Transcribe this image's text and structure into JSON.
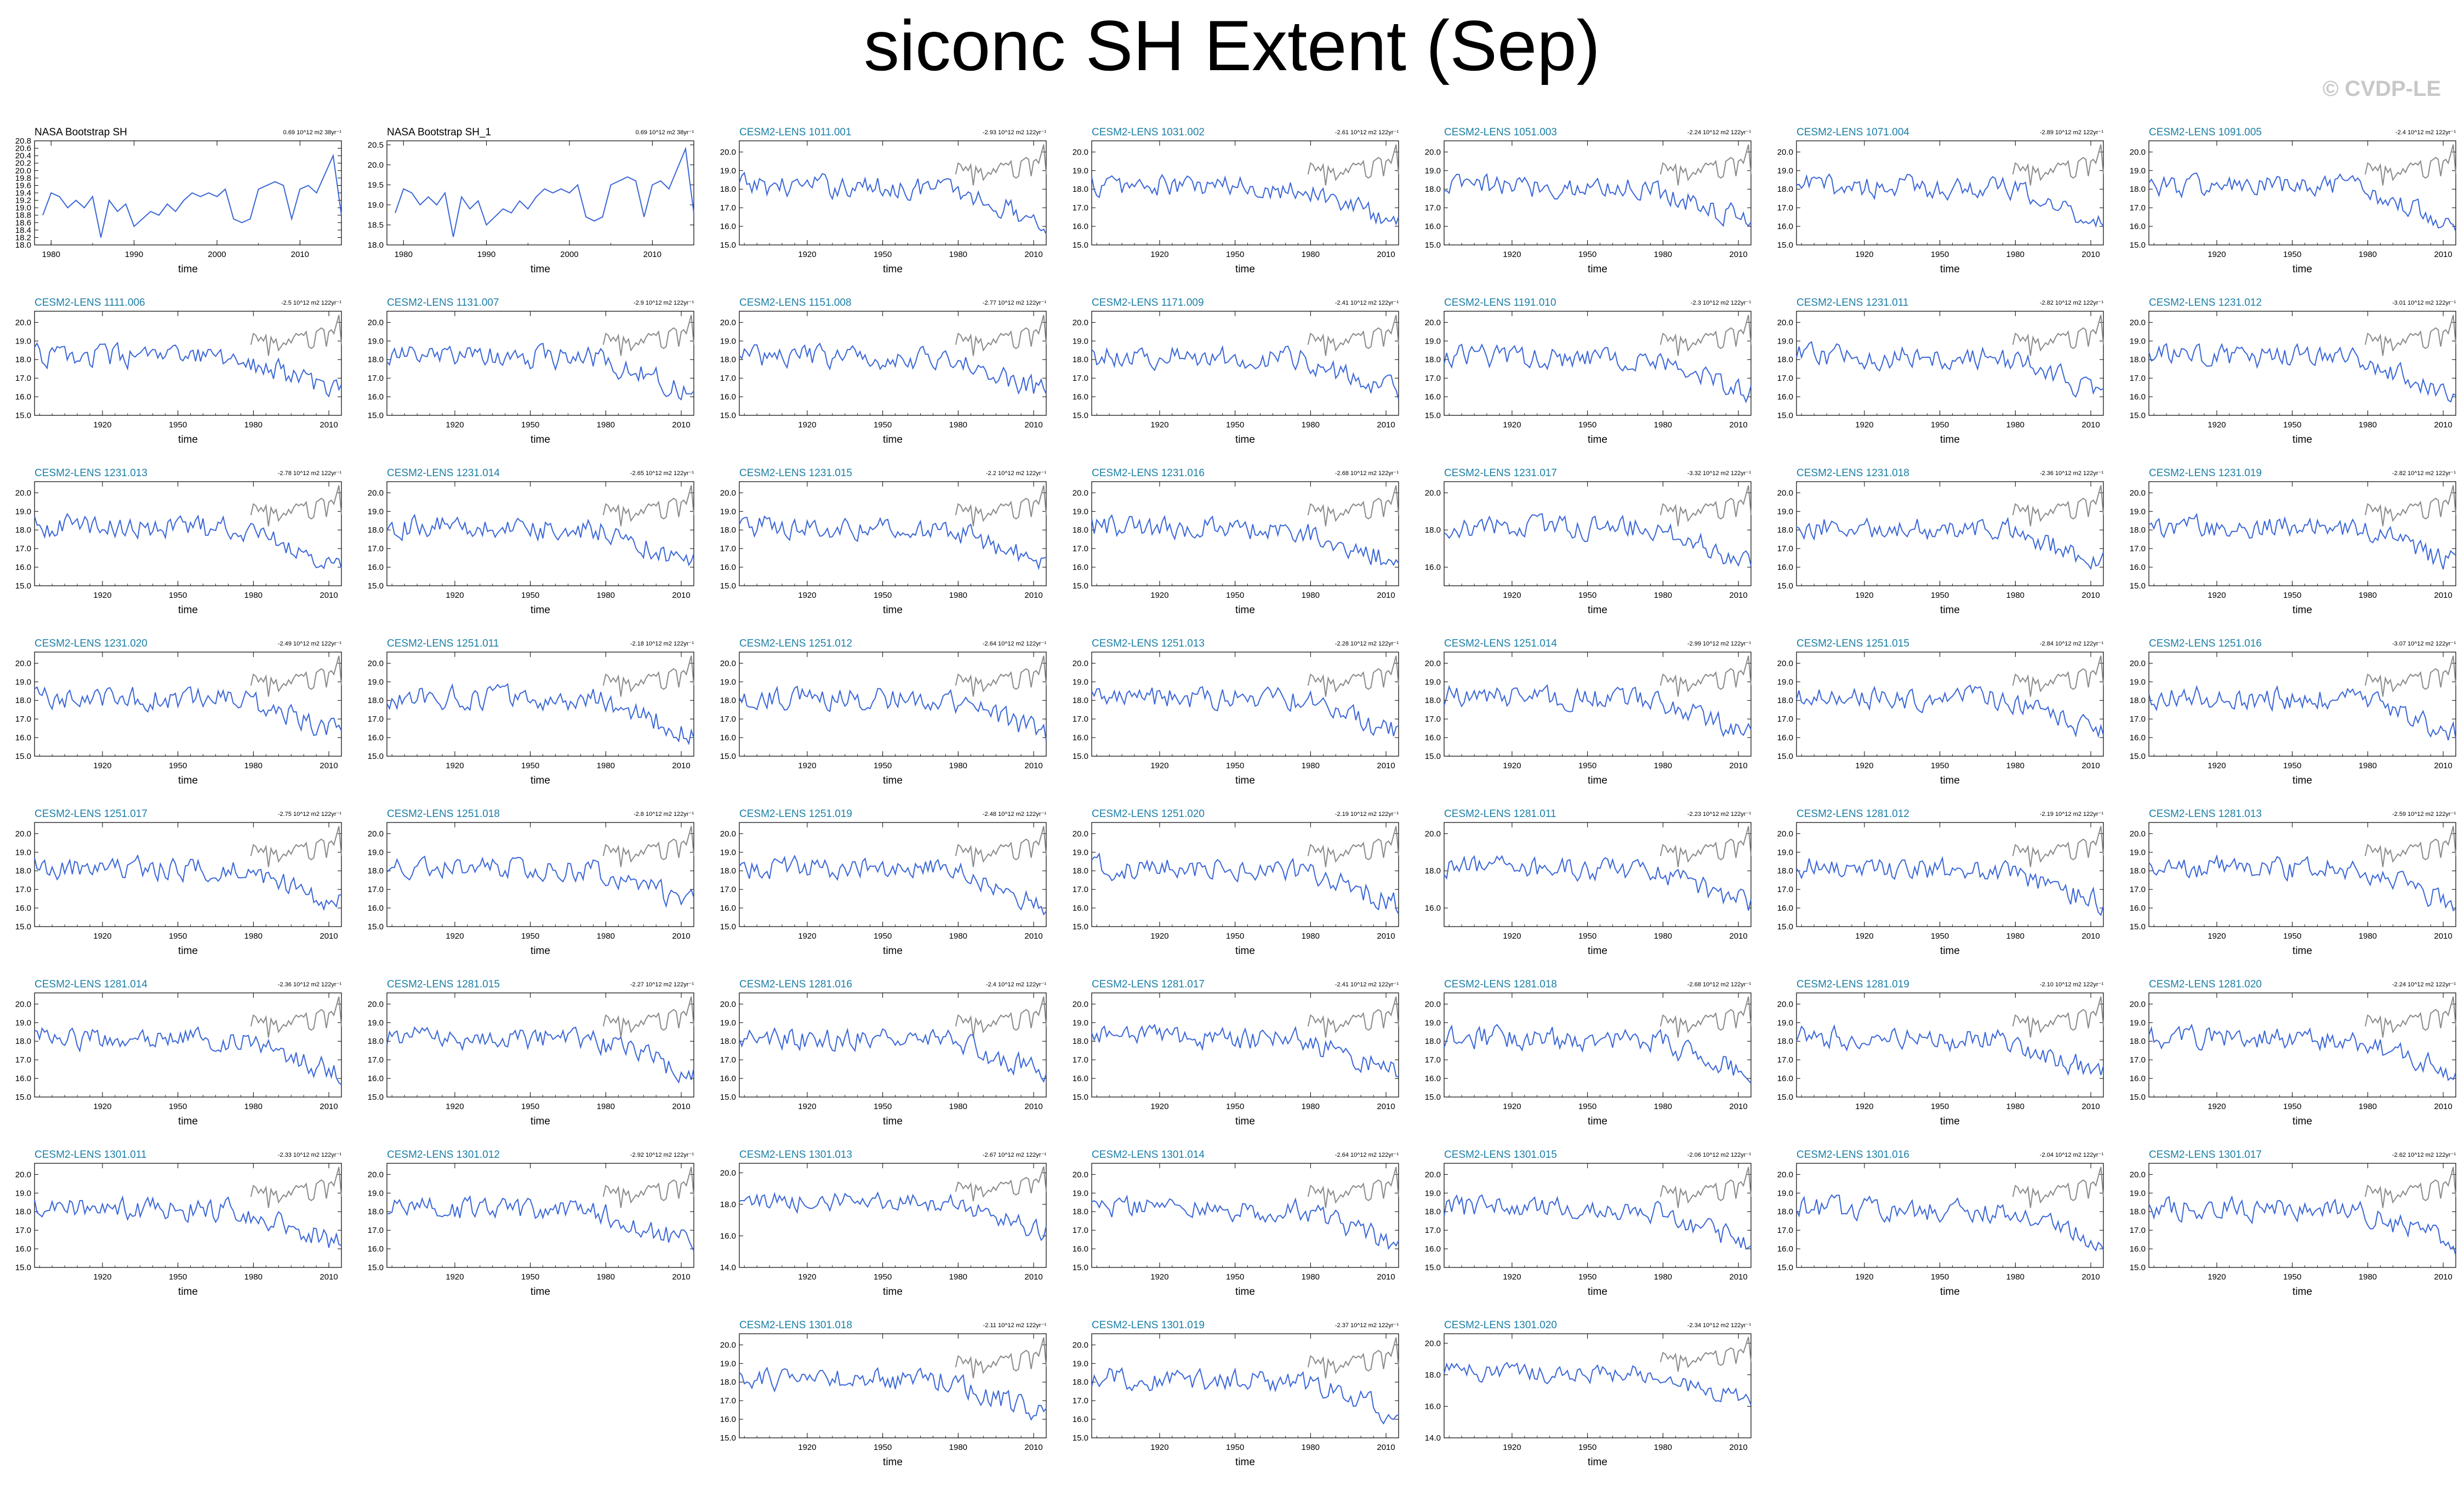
{
  "title": "siconc SH Extent (Sep)",
  "watermark": "© CVDP-LE",
  "colors": {
    "model_line": "#3a66d8",
    "obs_overlay": "#8a8a8a",
    "obs_line": "#3a66d8",
    "title_model": "#1b7fa6",
    "title_obs": "#000000"
  },
  "chart_data": [
    {
      "type": "line",
      "title": "NASA Bootstrap SH",
      "trend": "0.69 10^12 m2 38yr⁻¹",
      "xlabel": "time",
      "xlim": [
        1978,
        2015
      ],
      "xticks": [
        1980,
        1990,
        2000,
        2010
      ],
      "ylim": [
        18.0,
        20.8
      ],
      "yticks": [
        "18.0",
        "18.2",
        "18.4",
        "18.6",
        "18.8",
        "19.0",
        "19.2",
        "19.4",
        "19.6",
        "19.8",
        "20.0",
        "20.2",
        "20.4",
        "20.6",
        "20.8"
      ],
      "obs": true,
      "series": [
        {
          "x": [
            1979,
            1980,
            1981,
            1982,
            1983,
            1984,
            1985,
            1986,
            1987,
            1988,
            1989,
            1990,
            1991,
            1992,
            1993,
            1994,
            1995,
            1996,
            1997,
            1998,
            1999,
            2000,
            2001,
            2002,
            2003,
            2004,
            2005,
            2006,
            2007,
            2008,
            2009,
            2010,
            2011,
            2012,
            2013,
            2014,
            2015
          ],
          "values": [
            18.8,
            19.4,
            19.3,
            19.0,
            19.2,
            19.0,
            19.3,
            18.2,
            19.2,
            18.9,
            19.1,
            18.5,
            18.7,
            18.9,
            18.8,
            19.1,
            18.9,
            19.2,
            19.4,
            19.3,
            19.4,
            19.3,
            19.5,
            18.7,
            18.6,
            18.7,
            19.5,
            19.6,
            19.7,
            19.6,
            18.7,
            19.5,
            19.6,
            19.4,
            19.9,
            20.4,
            18.8
          ]
        }
      ]
    },
    {
      "type": "line",
      "title": "NASA Bootstrap SH_1",
      "trend": "0.69 10^12 m2 38yr⁻¹",
      "xlabel": "time",
      "xlim": [
        1978,
        2015
      ],
      "xticks": [
        1980,
        1990,
        2000,
        2010
      ],
      "ylim": [
        18.0,
        20.6
      ],
      "yticks": [
        "18.0",
        "18.5",
        "19.0",
        "19.5",
        "20.0",
        "20.5"
      ],
      "obs": true,
      "series": [
        {
          "x": [
            1979,
            1980,
            1981,
            1982,
            1983,
            1984,
            1985,
            1986,
            1987,
            1988,
            1989,
            1990,
            1991,
            1992,
            1993,
            1994,
            1995,
            1996,
            1997,
            1998,
            1999,
            2000,
            2001,
            2002,
            2003,
            2004,
            2005,
            2006,
            2007,
            2008,
            2009,
            2010,
            2011,
            2012,
            2013,
            2014,
            2015
          ],
          "values": [
            18.8,
            19.4,
            19.3,
            19.0,
            19.2,
            19.0,
            19.3,
            18.2,
            19.2,
            18.9,
            19.1,
            18.5,
            18.7,
            18.9,
            18.8,
            19.1,
            18.9,
            19.2,
            19.4,
            19.3,
            19.4,
            19.3,
            19.5,
            18.7,
            18.6,
            18.7,
            19.5,
            19.6,
            19.7,
            19.6,
            18.7,
            19.5,
            19.6,
            19.4,
            19.9,
            20.4,
            18.8
          ]
        }
      ]
    },
    {
      "title": "CESM2-LENS 1011.001",
      "trend": "-2.93 10^12 m2 122yr⁻¹"
    },
    {
      "title": "CESM2-LENS 1031.002",
      "trend": "-2.61 10^12 m2 122yr⁻¹"
    },
    {
      "title": "CESM2-LENS 1051.003",
      "trend": "-2.24 10^12 m2 122yr⁻¹"
    },
    {
      "title": "CESM2-LENS 1071.004",
      "trend": "-2.89 10^12 m2 122yr⁻¹"
    },
    {
      "title": "CESM2-LENS 1091.005",
      "trend": "-2.4 10^12 m2 122yr⁻¹"
    },
    {
      "title": "CESM2-LENS 1111.006",
      "trend": "-2.5 10^12 m2 122yr⁻¹"
    },
    {
      "title": "CESM2-LENS 1131.007",
      "trend": "-2.9 10^12 m2 122yr⁻¹"
    },
    {
      "title": "CESM2-LENS 1151.008",
      "trend": "-2.77 10^12 m2 122yr⁻¹"
    },
    {
      "title": "CESM2-LENS 1171.009",
      "trend": "-2.41 10^12 m2 122yr⁻¹"
    },
    {
      "title": "CESM2-LENS 1191.010",
      "trend": "-2.3 10^12 m2 122yr⁻¹"
    },
    {
      "title": "CESM2-LENS 1231.011",
      "trend": "-2.82 10^12 m2 122yr⁻¹"
    },
    {
      "title": "CESM2-LENS 1231.012",
      "trend": "-3.01 10^12 m2 122yr⁻¹"
    },
    {
      "title": "CESM2-LENS 1231.013",
      "trend": "-2.78 10^12 m2 122yr⁻¹"
    },
    {
      "title": "CESM2-LENS 1231.014",
      "trend": "-2.65 10^12 m2 122yr⁻¹"
    },
    {
      "title": "CESM2-LENS 1231.015",
      "trend": "-2.2 10^12 m2 122yr⁻¹"
    },
    {
      "title": "CESM2-LENS 1231.016",
      "trend": "-2.68 10^12 m2 122yr⁻¹"
    },
    {
      "title": "CESM2-LENS 1231.017",
      "trend": "-3.32 10^12 m2 122yr⁻¹",
      "yticks": [
        "16.0",
        "18.0",
        "20.0"
      ]
    },
    {
      "title": "CESM2-LENS 1231.018",
      "trend": "-2.36 10^12 m2 122yr⁻¹"
    },
    {
      "title": "CESM2-LENS 1231.019",
      "trend": "-2.82 10^12 m2 122yr⁻¹"
    },
    {
      "title": "CESM2-LENS 1231.020",
      "trend": "-2.49 10^12 m2 122yr⁻¹"
    },
    {
      "title": "CESM2-LENS 1251.011",
      "trend": "-2.18 10^12 m2 122yr⁻¹"
    },
    {
      "title": "CESM2-LENS 1251.012",
      "trend": "-2.64 10^12 m2 122yr⁻¹"
    },
    {
      "title": "CESM2-LENS 1251.013",
      "trend": "-2.28 10^12 m2 122yr⁻¹"
    },
    {
      "title": "CESM2-LENS 1251.014",
      "trend": "-2.99 10^12 m2 122yr⁻¹"
    },
    {
      "title": "CESM2-LENS 1251.015",
      "trend": "-2.84 10^12 m2 122yr⁻¹"
    },
    {
      "title": "CESM2-LENS 1251.016",
      "trend": "-3.07 10^12 m2 122yr⁻¹"
    },
    {
      "title": "CESM2-LENS 1251.017",
      "trend": "-2.75 10^12 m2 122yr⁻¹"
    },
    {
      "title": "CESM2-LENS 1251.018",
      "trend": "-2.8 10^12 m2 122yr⁻¹"
    },
    {
      "title": "CESM2-LENS 1251.019",
      "trend": "-2.48 10^12 m2 122yr⁻¹"
    },
    {
      "title": "CESM2-LENS 1251.020",
      "trend": "-2.19 10^12 m2 122yr⁻¹"
    },
    {
      "title": "CESM2-LENS 1281.011",
      "trend": "-2.23 10^12 m2 122yr⁻¹",
      "yticks": [
        "16.0",
        "18.0",
        "20.0"
      ]
    },
    {
      "title": "CESM2-LENS 1281.012",
      "trend": "-2.19 10^12 m2 122yr⁻¹"
    },
    {
      "title": "CESM2-LENS 1281.013",
      "trend": "-2.59 10^12 m2 122yr⁻¹"
    },
    {
      "title": "CESM2-LENS 1281.014",
      "trend": "-2.36 10^12 m2 122yr⁻¹"
    },
    {
      "title": "CESM2-LENS 1281.015",
      "trend": "-2.27 10^12 m2 122yr⁻¹"
    },
    {
      "title": "CESM2-LENS 1281.016",
      "trend": "-2.4 10^12 m2 122yr⁻¹"
    },
    {
      "title": "CESM2-LENS 1281.017",
      "trend": "-2.41 10^12 m2 122yr⁻¹"
    },
    {
      "title": "CESM2-LENS 1281.018",
      "trend": "-2.68 10^12 m2 122yr⁻¹"
    },
    {
      "title": "CESM2-LENS 1281.019",
      "trend": "-2.10 10^12 m2 122yr⁻¹"
    },
    {
      "title": "CESM2-LENS 1281.020",
      "trend": "-2.24 10^12 m2 122yr⁻¹"
    },
    {
      "title": "CESM2-LENS 1301.011",
      "trend": "-2.33 10^12 m2 122yr⁻¹"
    },
    {
      "title": "CESM2-LENS 1301.012",
      "trend": "-2.92 10^12 m2 122yr⁻¹"
    },
    {
      "title": "CESM2-LENS 1301.013",
      "trend": "-2.67 10^12 m2 122yr⁻¹",
      "yticks": [
        "14.0",
        "16.0",
        "18.0",
        "20.0"
      ]
    },
    {
      "title": "CESM2-LENS 1301.014",
      "trend": "-2.64 10^12 m2 122yr⁻¹"
    },
    {
      "title": "CESM2-LENS 1301.015",
      "trend": "-2.06 10^12 m2 122yr⁻¹"
    },
    {
      "title": "CESM2-LENS 1301.016",
      "trend": "-2.04 10^12 m2 122yr⁻¹"
    },
    {
      "title": "CESM2-LENS 1301.017",
      "trend": "-2.62 10^12 m2 122yr⁻¹"
    },
    {
      "title": "CESM2-LENS 1301.018",
      "trend": "-2.11 10^12 m2 122yr⁻¹"
    },
    {
      "title": "CESM2-LENS 1301.019",
      "trend": "-2.37 10^12 m2 122yr⁻¹"
    },
    {
      "title": "CESM2-LENS 1301.020",
      "trend": "-2.34 10^12 m2 122yr⁻¹",
      "yticks": [
        "14.0",
        "16.0",
        "18.0",
        "20.0"
      ]
    }
  ],
  "model_defaults": {
    "type": "line",
    "xlabel": "time",
    "xlim": [
      1893,
      2015
    ],
    "xticks": [
      1920,
      1950,
      1980,
      2010
    ],
    "ylim": [
      15.0,
      20.6
    ],
    "yticks": [
      "15.0",
      "16.0",
      "17.0",
      "18.0",
      "19.0",
      "20.0"
    ],
    "obs_overlay_x_start": 1979,
    "obs_overlay_values": [
      18.8,
      19.4,
      19.3,
      19.0,
      19.2,
      19.0,
      19.3,
      18.2,
      19.2,
      18.9,
      19.1,
      18.5,
      18.7,
      18.9,
      18.8,
      19.1,
      18.9,
      19.2,
      19.4,
      19.3,
      19.4,
      19.3,
      19.5,
      18.7,
      18.6,
      18.7,
      19.5,
      19.6,
      19.7,
      19.6,
      18.7,
      19.5,
      19.6,
      19.4,
      19.9,
      20.4,
      18.8
    ]
  }
}
